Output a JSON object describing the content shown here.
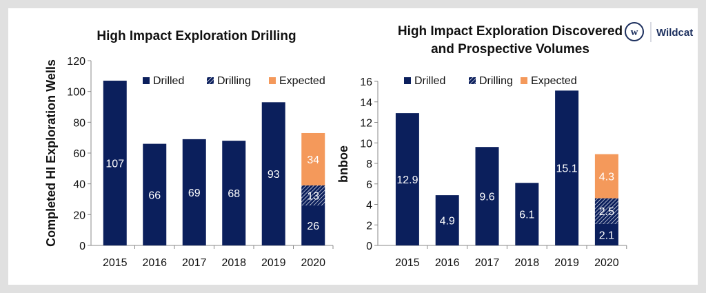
{
  "logo": {
    "mark": "w",
    "text": "Wildcat"
  },
  "colors": {
    "drilled": "#0b1f5c",
    "drilling": "#0b1f5c",
    "expected": "#f4995b"
  },
  "chart_data": [
    {
      "type": "bar",
      "stacked": true,
      "title": "High Impact Exploration Drilling",
      "ylabel": "Completed HI Exploration Wells",
      "xlabel": "",
      "ylim": [
        0,
        120
      ],
      "yticks": [
        0,
        20,
        40,
        60,
        80,
        100,
        120
      ],
      "legend": "top",
      "categories": [
        "2015",
        "2016",
        "2017",
        "2018",
        "2019",
        "2020"
      ],
      "series": [
        {
          "name": "Drilled",
          "values": [
            107,
            66,
            69,
            68,
            93,
            26
          ]
        },
        {
          "name": "Drilling",
          "values": [
            0,
            0,
            0,
            0,
            0,
            13
          ]
        },
        {
          "name": "Expected",
          "values": [
            0,
            0,
            0,
            0,
            0,
            34
          ]
        }
      ]
    },
    {
      "type": "bar",
      "stacked": true,
      "title": "High Impact Exploration Discovered and Prospective Volumes",
      "title_lines": [
        "High Impact Exploration Discovered",
        "and Prospective Volumes"
      ],
      "ylabel": "bnboe",
      "xlabel": "",
      "ylim": [
        0,
        16
      ],
      "yticks": [
        0,
        2,
        4,
        6,
        8,
        10,
        12,
        14,
        16
      ],
      "legend": "top",
      "categories": [
        "2015",
        "2016",
        "2017",
        "2018",
        "2019",
        "2020"
      ],
      "series": [
        {
          "name": "Drilled",
          "values": [
            12.9,
            4.9,
            9.6,
            6.1,
            15.1,
            2.1
          ]
        },
        {
          "name": "Drilling",
          "values": [
            0,
            0,
            0,
            0,
            0,
            2.5
          ]
        },
        {
          "name": "Expected",
          "values": [
            0,
            0,
            0,
            0,
            0,
            4.3
          ]
        }
      ]
    }
  ]
}
